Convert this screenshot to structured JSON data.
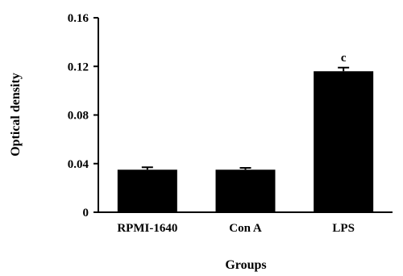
{
  "chart_data": {
    "type": "bar",
    "categories": [
      "RPMI-1640",
      "Con A",
      "LPS"
    ],
    "values": [
      0.035,
      0.035,
      0.116
    ],
    "errors": [
      0.002,
      0.0015,
      0.003
    ],
    "annotations": [
      "",
      "",
      "c"
    ],
    "xlabel": "Groups",
    "ylabel": "Optical density",
    "ylim": [
      0,
      0.16
    ],
    "yticks": [
      0,
      0.04,
      0.08,
      0.12,
      0.16
    ],
    "ytick_labels": [
      "0",
      "0.04",
      "0.08",
      "0.12",
      "0.16"
    ],
    "grid": false,
    "legend": "none",
    "bar_color": "#000000"
  }
}
